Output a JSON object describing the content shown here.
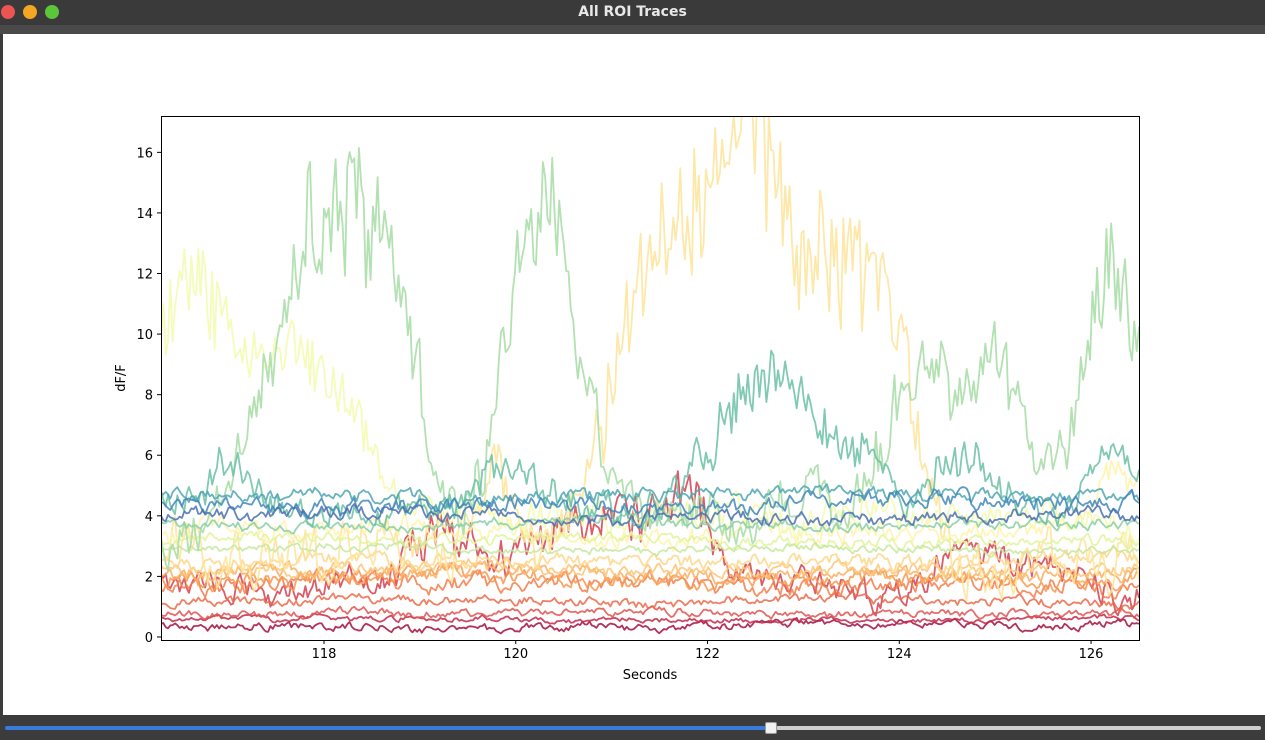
{
  "window": {
    "title": "All ROI Traces"
  },
  "slider": {
    "position_fraction": 0.61
  },
  "chart_data": {
    "type": "line",
    "title": "",
    "xlabel": "Seconds",
    "ylabel": "dF/F",
    "xlim": [
      116.3,
      126.5
    ],
    "ylim": [
      -0.1,
      17.2
    ],
    "xticks": [
      118,
      120,
      122,
      124,
      126
    ],
    "yticks": [
      0,
      2,
      4,
      6,
      8,
      10,
      12,
      14,
      16
    ],
    "grid": false,
    "legend": "none",
    "colormap": "Spectral",
    "series": [
      {
        "color": "#a50f3d",
        "baseline": 0.35,
        "amp": 0.15,
        "events": []
      },
      {
        "color": "#c2294b",
        "baseline": 0.6,
        "amp": 0.1,
        "events": []
      },
      {
        "color": "#d5404e",
        "baseline": 1.6,
        "amp": 0.55,
        "events": [
          [
            119.2,
            0.5,
            2.2
          ],
          [
            120.4,
            0.6,
            1.5
          ],
          [
            121.2,
            0.7,
            2.3
          ],
          [
            121.8,
            0.3,
            2.3
          ],
          [
            124.8,
            0.5,
            1.2
          ],
          [
            125.6,
            0.5,
            1.0
          ]
        ]
      },
      {
        "color": "#e05450",
        "baseline": 0.8,
        "amp": 0.15,
        "events": []
      },
      {
        "color": "#ea6a4a",
        "baseline": 1.15,
        "amp": 0.18,
        "events": []
      },
      {
        "color": "#f47d4a",
        "baseline": 1.7,
        "amp": 0.3,
        "events": []
      },
      {
        "color": "#f8984f",
        "baseline": 1.9,
        "amp": 0.28,
        "events": []
      },
      {
        "color": "#fcae62",
        "baseline": 2.05,
        "amp": 0.28,
        "events": []
      },
      {
        "color": "#fdc477",
        "baseline": 2.2,
        "amp": 0.25,
        "events": []
      },
      {
        "color": "#fed68a",
        "baseline": 2.5,
        "amp": 0.3,
        "events": []
      },
      {
        "color": "#fee49a",
        "baseline": 3.0,
        "amp": 1.0,
        "events": [
          [
            119.8,
            0.25,
            2.5
          ],
          [
            121.3,
            0.5,
            6.5
          ],
          [
            121.9,
            0.5,
            9.0
          ],
          [
            122.55,
            0.45,
            11.0
          ],
          [
            123.3,
            0.45,
            8.5
          ],
          [
            123.9,
            0.4,
            6.0
          ]
        ]
      },
      {
        "color": "#fff3ab",
        "baseline": 3.4,
        "amp": 0.4,
        "events": [
          [
            126.3,
            0.3,
            2.5
          ]
        ]
      },
      {
        "color": "#f3faad",
        "baseline": 3.8,
        "amp": 0.6,
        "events": [
          [
            116.4,
            0.3,
            4.5
          ],
          [
            116.8,
            0.4,
            6.5
          ],
          [
            117.5,
            0.4,
            4.5
          ],
          [
            118.1,
            0.5,
            4.2
          ]
        ]
      },
      {
        "color": "#e1f39a",
        "baseline": 3.2,
        "amp": 0.2,
        "events": []
      },
      {
        "color": "#c7e89e",
        "baseline": 2.9,
        "amp": 0.15,
        "events": []
      },
      {
        "color": "#a6dca4",
        "baseline": 4.0,
        "amp": 1.0,
        "events": [
          [
            117.7,
            0.5,
            6.5
          ],
          [
            118.3,
            0.5,
            8.5
          ],
          [
            118.8,
            0.3,
            5.5
          ],
          [
            120.1,
            0.4,
            7.0
          ],
          [
            120.5,
            0.4,
            5.5
          ],
          [
            124.2,
            0.5,
            5.0
          ],
          [
            125.0,
            0.4,
            4.5
          ],
          [
            126.2,
            0.4,
            7.5
          ]
        ]
      },
      {
        "color": "#88cfa4",
        "baseline": 3.7,
        "amp": 0.2,
        "events": []
      },
      {
        "color": "#6ac0a5",
        "baseline": 4.4,
        "amp": 0.6,
        "events": [
          [
            117.0,
            0.3,
            1.5
          ],
          [
            119.9,
            0.4,
            1.5
          ],
          [
            122.4,
            0.5,
            3.5
          ],
          [
            123.0,
            0.4,
            2.5
          ],
          [
            123.6,
            0.3,
            2.0
          ],
          [
            124.6,
            0.4,
            1.5
          ],
          [
            126.2,
            0.3,
            1.5
          ]
        ]
      },
      {
        "color": "#4ea6b1",
        "baseline": 4.6,
        "amp": 0.25,
        "events": []
      },
      {
        "color": "#3f87bc",
        "baseline": 4.4,
        "amp": 0.3,
        "events": []
      },
      {
        "color": "#4a6fb2",
        "baseline": 4.0,
        "amp": 0.25,
        "events": []
      }
    ]
  }
}
